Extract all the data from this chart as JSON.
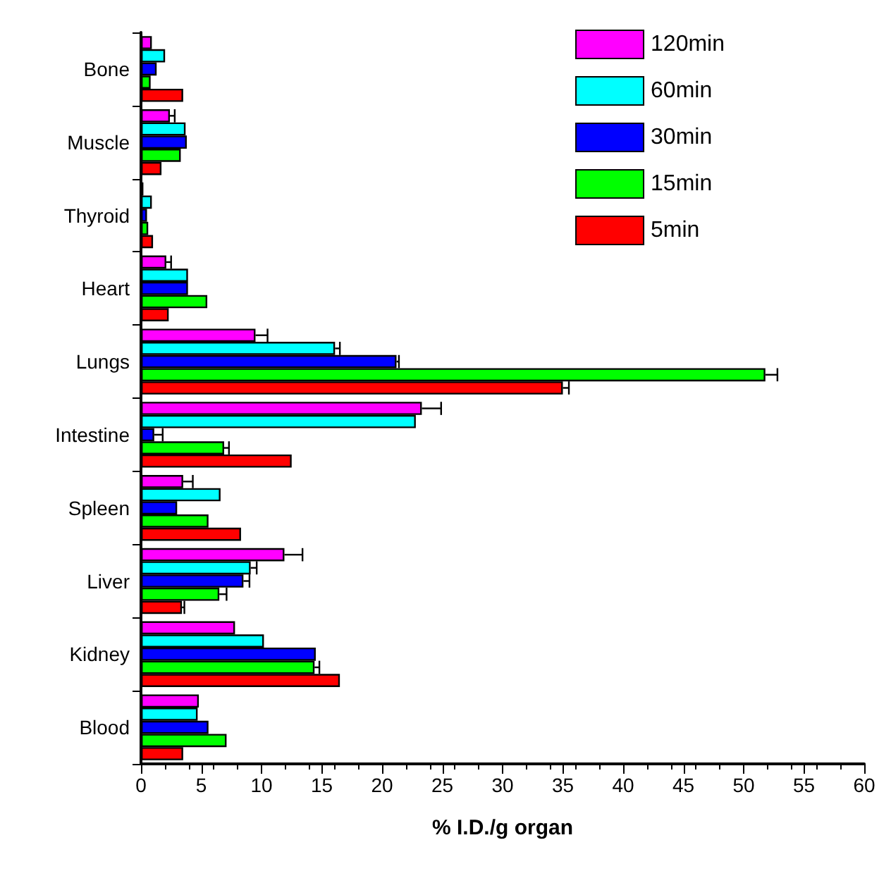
{
  "chart_data": {
    "type": "bar",
    "orientation": "horizontal",
    "xlabel": "% I.D./g organ",
    "categories": [
      "Bone",
      "Muscle",
      "Thyroid",
      "Heart",
      "Lungs",
      "Intestine",
      "Spleen",
      "Liver",
      "Kidney",
      "Blood"
    ],
    "xlim": [
      0,
      60
    ],
    "xticks": [
      0,
      5,
      10,
      15,
      20,
      25,
      30,
      35,
      40,
      45,
      50,
      55,
      60
    ],
    "legend": "top right",
    "grid": false,
    "series": [
      {
        "name": "120min",
        "color": "#ff00ff",
        "values": [
          0.9,
          2.4,
          0.2,
          2.1,
          9.5,
          23.3,
          3.5,
          11.9,
          7.8,
          4.8
        ],
        "errors": [
          null,
          [
            2.4,
            2.8
          ],
          null,
          [
            2.1,
            2.5
          ],
          [
            9.5,
            10.5
          ],
          [
            23.3,
            24.9
          ],
          [
            3.5,
            4.3
          ],
          [
            11.9,
            13.4
          ],
          null,
          null
        ]
      },
      {
        "name": "60min",
        "color": "#00ffff",
        "values": [
          2.0,
          3.7,
          0.9,
          3.9,
          16.1,
          22.8,
          6.6,
          9.1,
          10.2,
          4.7
        ],
        "errors": [
          null,
          null,
          null,
          null,
          [
            16.1,
            16.5
          ],
          null,
          null,
          [
            9.1,
            9.6
          ],
          null,
          null
        ]
      },
      {
        "name": "30min",
        "color": "#0000ff",
        "values": [
          1.3,
          3.8,
          0.5,
          3.9,
          21.2,
          1.1,
          3.0,
          8.5,
          14.5,
          5.6
        ],
        "errors": [
          null,
          null,
          null,
          null,
          [
            21.2,
            21.4
          ],
          [
            1.1,
            1.8
          ],
          null,
          [
            8.5,
            9.0
          ],
          null,
          null
        ]
      },
      {
        "name": "15min",
        "color": "#00ff00",
        "values": [
          0.8,
          3.3,
          0.6,
          5.5,
          51.8,
          6.9,
          5.6,
          6.5,
          14.4,
          7.1
        ],
        "errors": [
          null,
          null,
          null,
          null,
          [
            51.8,
            52.8
          ],
          [
            6.9,
            7.3
          ],
          null,
          [
            6.5,
            7.1
          ],
          [
            14.4,
            14.8
          ],
          null
        ]
      },
      {
        "name": "5min",
        "color": "#ff0000",
        "values": [
          3.5,
          1.7,
          1.0,
          2.3,
          35.0,
          12.5,
          8.3,
          3.4,
          16.5,
          3.5
        ],
        "errors": [
          null,
          null,
          null,
          null,
          [
            35.0,
            35.5
          ],
          null,
          null,
          [
            3.4,
            3.6
          ],
          null,
          null
        ]
      }
    ]
  }
}
